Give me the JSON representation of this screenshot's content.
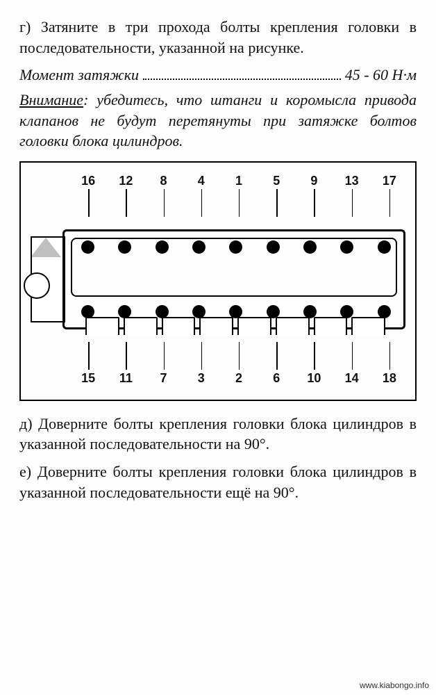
{
  "step_g": "г) Затяните в три прохода болты крепления головки в последовательности, указанной на рисунке.",
  "torque": {
    "label": "Момент затяжки",
    "value": "45 - 60 Н·м"
  },
  "attention": {
    "lead": "Внимание",
    "text": ": убедитесь, что штанги и коромысла привода клапанов не будут перетянуты при затяжке болтов головки блока цилиндров."
  },
  "diagram": {
    "top_labels": [
      "16",
      "12",
      "8",
      "4",
      "1",
      "5",
      "9",
      "13",
      "17"
    ],
    "bottom_labels": [
      "15",
      "11",
      "7",
      "3",
      "2",
      "6",
      "10",
      "14",
      "18"
    ],
    "bolt_count_per_row": 9,
    "colors": {
      "frame": "#000000",
      "bolt": "#000000",
      "bg": "#fdfdfd"
    }
  },
  "step_d": "д) Доверните болты крепления головки блока цилиндров в указанной последовательности на 90°.",
  "step_e": "е) Доверните болты крепления головки блока цилиндров в указанной последовательности ещё на 90°.",
  "watermark": "www.kiabongo.info"
}
